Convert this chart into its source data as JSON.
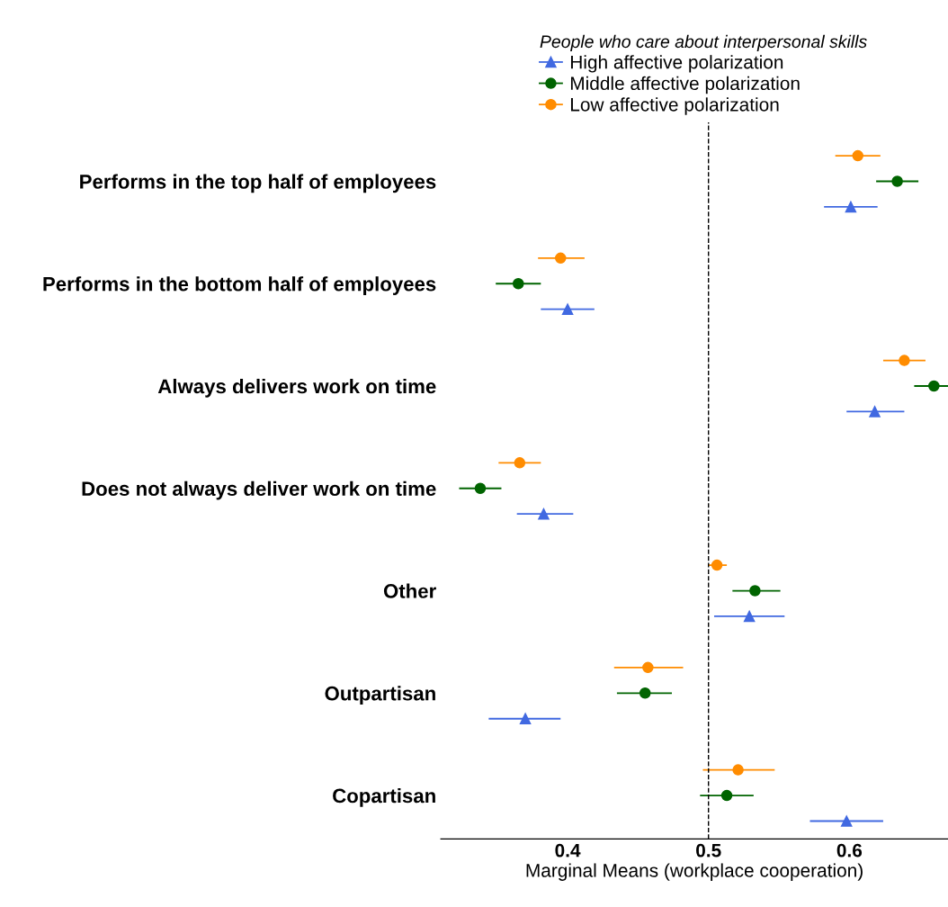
{
  "chart_data": {
    "type": "scatter",
    "orientation": "horizontal",
    "xlabel": "Marginal Means (workplace cooperation)",
    "legend_title": "People who care about interpersonal skills",
    "legend": "top",
    "categories": [
      null,
      "Performs in the top half of employees",
      null,
      null,
      null,
      "Performs in the bottom half of employees",
      null,
      null,
      null,
      "Always delivers work on time",
      null,
      null,
      null,
      "Does not always deliver work on time",
      null,
      null,
      null,
      "Other",
      null,
      null,
      null,
      "Outpartisan",
      null,
      null,
      null,
      "Copartisan",
      null
    ],
    "xlim": [
      0.31,
      0.67
    ],
    "xticks": [
      0.4,
      0.5,
      0.6
    ],
    "grid": false,
    "ref_lines": [
      {
        "axis": "x",
        "value": 0.5,
        "line_style": "dashed",
        "color": "#000000"
      }
    ],
    "series": [
      {
        "name": "High affective polarization",
        "color": "#4169e1",
        "marker": "triangle",
        "values": [
          null,
          null,
          0.601,
          null,
          null,
          null,
          0.4,
          null,
          null,
          null,
          0.618,
          null,
          null,
          null,
          0.383,
          null,
          null,
          null,
          0.529,
          null,
          null,
          null,
          0.37,
          null,
          null,
          null,
          0.598
        ],
        "errors": [
          null,
          null,
          [
            0.582,
            0.62
          ],
          null,
          null,
          null,
          [
            0.381,
            0.419
          ],
          null,
          null,
          null,
          [
            0.598,
            0.639
          ],
          null,
          null,
          null,
          [
            0.364,
            0.404
          ],
          null,
          null,
          null,
          [
            0.504,
            0.554
          ],
          null,
          null,
          null,
          [
            0.344,
            0.395
          ],
          null,
          null,
          null,
          [
            0.572,
            0.624
          ]
        ]
      },
      {
        "name": "Middle affective polarization",
        "color": "#006400",
        "marker": "circle",
        "values": [
          null,
          0.634,
          null,
          null,
          null,
          0.365,
          null,
          null,
          null,
          0.66,
          null,
          null,
          null,
          0.338,
          null,
          null,
          null,
          0.533,
          null,
          null,
          null,
          0.455,
          null,
          null,
          null,
          0.513,
          null
        ],
        "errors": [
          null,
          [
            0.619,
            0.649
          ],
          null,
          null,
          null,
          [
            0.349,
            0.381
          ],
          null,
          null,
          null,
          [
            0.646,
            0.67
          ],
          null,
          null,
          null,
          [
            0.323,
            0.353
          ],
          null,
          null,
          null,
          [
            0.517,
            0.551
          ],
          null,
          null,
          null,
          [
            0.435,
            0.474
          ],
          null,
          null,
          null,
          [
            0.494,
            0.532
          ],
          null
        ]
      },
      {
        "name": "Low affective polarization",
        "color": "#ff8c00",
        "marker": "circle",
        "values": [
          0.606,
          null,
          null,
          null,
          0.395,
          null,
          null,
          null,
          0.639,
          null,
          null,
          null,
          0.366,
          null,
          null,
          null,
          0.506,
          null,
          null,
          null,
          0.457,
          null,
          null,
          null,
          0.521,
          null,
          null
        ],
        "errors": [
          [
            0.59,
            0.622
          ],
          null,
          null,
          null,
          [
            0.379,
            0.412
          ],
          null,
          null,
          null,
          [
            0.624,
            0.654
          ],
          null,
          null,
          null,
          [
            0.351,
            0.381
          ],
          null,
          null,
          null,
          [
            0.5,
            0.513
          ],
          null,
          null,
          null,
          [
            0.433,
            0.482
          ],
          null,
          null,
          null,
          [
            0.496,
            0.547
          ],
          null,
          null
        ]
      }
    ]
  }
}
